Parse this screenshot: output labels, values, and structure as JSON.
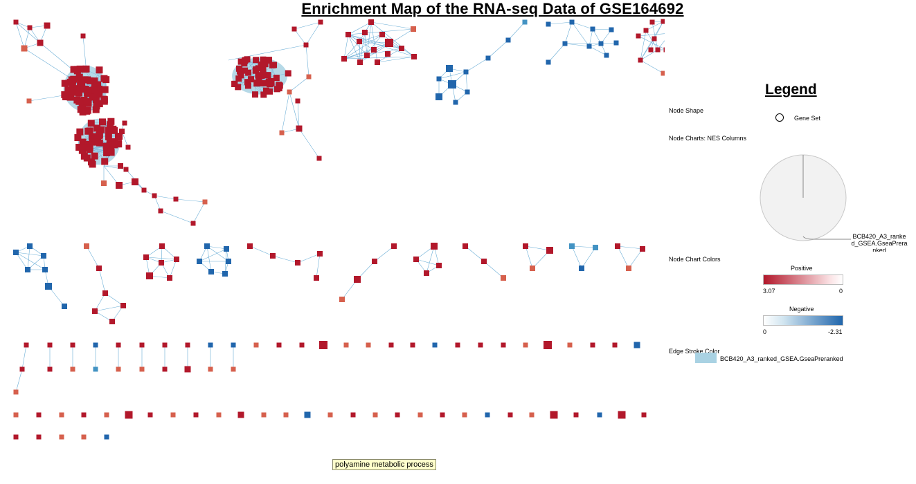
{
  "title": "Enrichment Map of the RNA-seq Data of GSE164692",
  "legend": {
    "heading": "Legend",
    "node_shape_label": "Node Shape",
    "gene_set_label": "Gene Set",
    "node_charts_label": "Node Charts: NES Columns",
    "pie_label": "BCB420_A3_ranked_GSEA.GseaPreranked",
    "node_chart_colors_label": "Node Chart Colors",
    "positive_label": "Positive",
    "positive_max": "3.07",
    "positive_min": "0",
    "negative_label": "Negative",
    "negative_min": "0",
    "negative_max": "-2.31",
    "edge_stroke_label": "Edge Stroke Color",
    "edge_stroke_value": "BCB420_A3_ranked_GSEA.GseaPreranked"
  },
  "tooltip": "polyamine metabolic process",
  "colors": {
    "strong_positive": "#b2182b",
    "moderate_positive": "#d6604d",
    "strong_negative": "#2166ac",
    "moderate_negative": "#4393c3",
    "edge": "#6baed6",
    "dense_edge_fill": "#a9d2e3"
  }
}
